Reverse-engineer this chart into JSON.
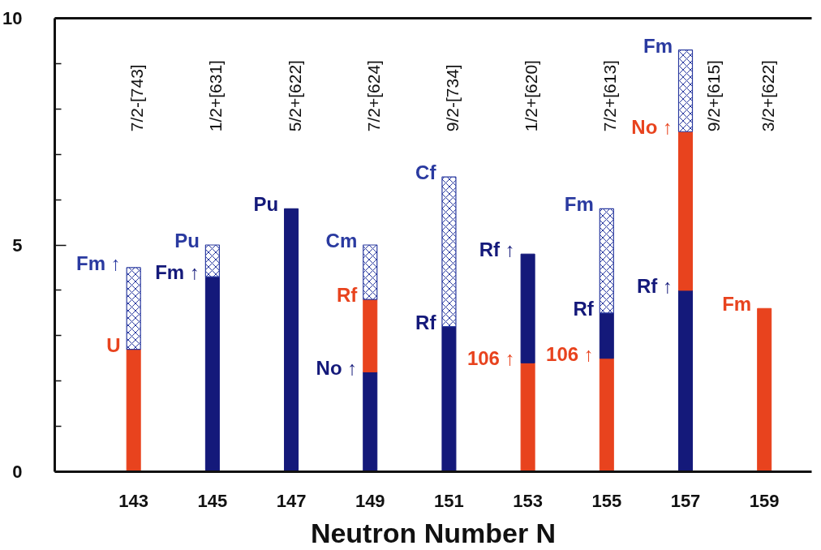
{
  "chart_data": {
    "type": "bar",
    "stacked": true,
    "xlabel": "Neutron Number N",
    "x": [
      143,
      145,
      147,
      149,
      151,
      153,
      155,
      157,
      159
    ],
    "xlim": [
      141,
      160.2
    ],
    "xticks": [
      143,
      145,
      147,
      149,
      151,
      153,
      155,
      157,
      159
    ],
    "ylim": [
      0,
      10
    ],
    "yticks": [
      0,
      {
        "value": 1,
        "label": null
      },
      {
        "value": 2,
        "label": null
      },
      {
        "value": 3,
        "label": null
      },
      {
        "value": 4,
        "label": null
      },
      5,
      {
        "value": 6,
        "label": null
      },
      {
        "value": 7,
        "label": null
      },
      {
        "value": 8,
        "label": null
      },
      {
        "value": 9,
        "label": null
      },
      10
    ],
    "grid": false,
    "series": [
      {
        "values": [
          2.7,
          4.3,
          5.8,
          2.2,
          3.2,
          2.4,
          2.5,
          4.0,
          3.6
        ],
        "colors": [
          "#e8431e",
          "#14197a",
          "#14197a",
          "#14197a",
          "#14197a",
          "#e8431e",
          "#e8431e",
          "#14197a",
          "#e8431e"
        ]
      },
      {
        "values": [
          null,
          null,
          null,
          1.6,
          null,
          2.4,
          1.0,
          3.5,
          null
        ],
        "colors": [
          null,
          null,
          null,
          "#e8431e",
          null,
          "#14197a",
          "#14197a",
          "#e8431e",
          null
        ]
      },
      {
        "values": [
          1.8,
          0.7,
          null,
          1.2,
          3.3,
          null,
          2.3,
          1.8,
          null
        ],
        "color": "#2a3aa0"
      }
    ],
    "annotations": [
      "7/2-[743]",
      "1/2+[631]",
      "5/2+[622]",
      "7/2+[624]",
      "9/2-[734]",
      "1/2+[620]",
      "7/2+[613]",
      "9/2+[615]",
      "3/2+[622]",
      {
        "text": "Fm ↑",
        "x": 143,
        "y": 4.5
      },
      {
        "text": "U",
        "x": 143,
        "y": 2.7
      },
      {
        "text": "Pu",
        "x": 145,
        "y": 5.0
      },
      {
        "text": "Fm ↑",
        "x": 145,
        "y": 4.3
      },
      {
        "text": "Pu",
        "x": 147,
        "y": 5.8
      },
      {
        "text": "Cm",
        "x": 149,
        "y": 5.0
      },
      {
        "text": "Rf",
        "x": 149,
        "y": 3.8
      },
      {
        "text": "No ↑",
        "x": 149,
        "y": 2.2
      },
      {
        "text": "Cf",
        "x": 151,
        "y": 6.5
      },
      {
        "text": "Rf",
        "x": 151,
        "y": 3.2
      },
      {
        "text": "Rf ↑",
        "x": 153,
        "y": 4.8
      },
      {
        "text": "106 ↑",
        "x": 153,
        "y": 2.4
      },
      {
        "text": "Fm",
        "x": 155,
        "y": 5.8
      },
      {
        "text": "Rf",
        "x": 155,
        "y": 3.5
      },
      {
        "text": "106 ↑",
        "x": 155,
        "y": 2.5
      },
      {
        "text": "Fm",
        "x": 157,
        "y": 9.3
      },
      {
        "text": "No ↑",
        "x": 157,
        "y": 7.5
      },
      {
        "text": "Rf ↑",
        "x": 157,
        "y": 4.0
      },
      {
        "text": "Fm",
        "x": 159,
        "y": 3.6
      }
    ]
  }
}
